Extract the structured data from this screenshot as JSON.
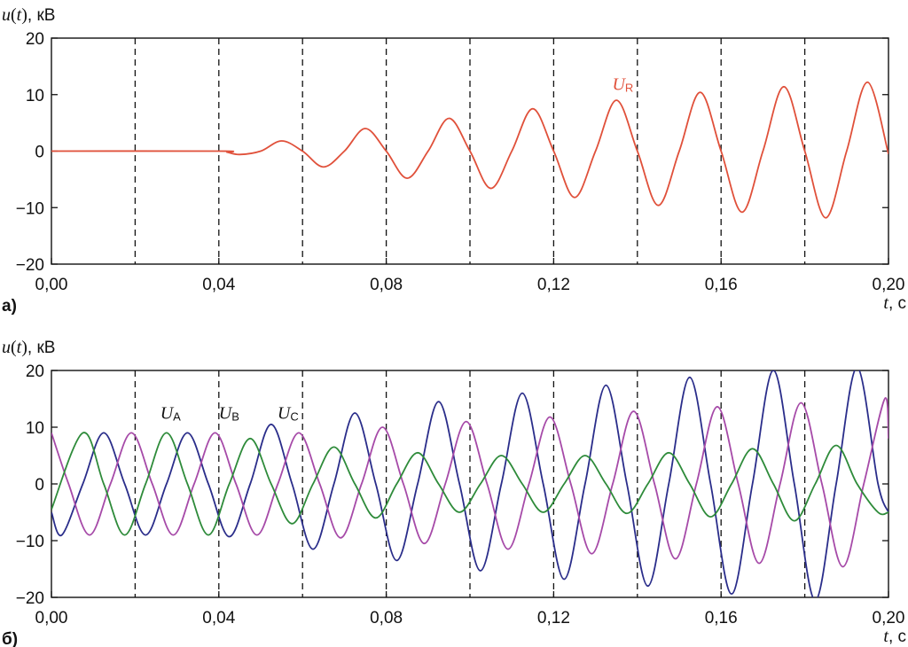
{
  "chart_data": [
    {
      "panel_label": "а)",
      "type": "line",
      "ylabel": "u(t), кВ",
      "ylabel_var": "u(t)",
      "ylabel_unit": ", кВ",
      "xlabel": "t, с",
      "xlabel_var": "t",
      "xlabel_unit": ", с",
      "xlim": [
        0,
        0.2
      ],
      "ylim": [
        -20,
        20
      ],
      "x_ticks": [
        "0,00",
        "0,04",
        "0,08",
        "0,12",
        "0,16",
        "0,20"
      ],
      "y_ticks": [
        "20",
        "10",
        "0",
        "−10",
        "−20"
      ],
      "y_tick_values": [
        20,
        10,
        0,
        -10,
        -20
      ],
      "x_tick_values": [
        0,
        0.04,
        0.08,
        0.12,
        0.16,
        0.2
      ],
      "vertical_dashed_lines": [
        0.02,
        0.04,
        0.06,
        0.08,
        0.1,
        0.12,
        0.14,
        0.16,
        0.18
      ],
      "grid": false,
      "series": [
        {
          "name": "UR",
          "label_main": "U",
          "label_sub": "R",
          "color": "#e0503a",
          "label_pos": [
            0.134,
            10.8
          ],
          "x": [
            0,
            0.04,
            0.042,
            0.045,
            0.05,
            0.055,
            0.06,
            0.065,
            0.07,
            0.075,
            0.08,
            0.085,
            0.09,
            0.095,
            0.1,
            0.105,
            0.11,
            0.115,
            0.12,
            0.125,
            0.13,
            0.135,
            0.14,
            0.145,
            0.15,
            0.155,
            0.16,
            0.165,
            0.17,
            0.175,
            0.18,
            0.185,
            0.19,
            0.195,
            0.2
          ],
          "y": [
            0,
            0,
            -0.2,
            -0.6,
            0,
            1.8,
            0,
            -2.8,
            0,
            4,
            0,
            -4.8,
            0,
            5.8,
            0,
            -6.6,
            0,
            7.5,
            0,
            -8.2,
            0,
            9,
            0,
            -9.6,
            0,
            10.4,
            0,
            -10.8,
            0,
            11.4,
            0,
            -11.8,
            0,
            12.2,
            -0.5
          ]
        }
      ]
    },
    {
      "panel_label": "б)",
      "type": "line",
      "ylabel": "u(t), кВ",
      "ylabel_var": "u(t)",
      "ylabel_unit": ", кВ",
      "xlabel": "t, с",
      "xlabel_var": "t",
      "xlabel_unit": ", с",
      "xlim": [
        0,
        0.2
      ],
      "ylim": [
        -20,
        20
      ],
      "x_ticks": [
        "0,00",
        "0,04",
        "0,08",
        "0,12",
        "0,16",
        "0,20"
      ],
      "y_ticks": [
        "20",
        "10",
        "0",
        "−10",
        "−20"
      ],
      "y_tick_values": [
        20,
        10,
        0,
        -10,
        -20
      ],
      "x_tick_values": [
        0,
        0.04,
        0.08,
        0.12,
        0.16,
        0.2
      ],
      "vertical_dashed_lines": [
        0.02,
        0.04,
        0.06,
        0.08,
        0.1,
        0.12,
        0.14,
        0.16,
        0.18
      ],
      "grid": false,
      "series": [
        {
          "name": "UA",
          "label_main": "U",
          "label_sub": "A",
          "color": "#2a2d8a",
          "label_pos": [
            0.026,
            11.5
          ],
          "x": [
            0,
            0.0025,
            0.0075,
            0.0125,
            0.0175,
            0.0225,
            0.0275,
            0.0325,
            0.0375,
            0.0425,
            0.0475,
            0.0525,
            0.0575,
            0.0625,
            0.0675,
            0.0725,
            0.0775,
            0.0825,
            0.0875,
            0.0925,
            0.0975,
            0.1025,
            0.1075,
            0.1125,
            0.1175,
            0.1225,
            0.1275,
            0.1325,
            0.1375,
            0.1425,
            0.1475,
            0.1525,
            0.1575,
            0.1625,
            0.1675,
            0.1725,
            0.1775,
            0.1825,
            0.1875,
            0.1925,
            0.1975,
            0.2
          ],
          "y": [
            -5,
            -9,
            0,
            9,
            0,
            -9,
            0,
            9,
            0,
            -9.3,
            0,
            10.5,
            0,
            -11.5,
            0,
            12.5,
            0,
            -13.5,
            0,
            14.5,
            0,
            -15.3,
            0,
            16,
            0,
            -16.8,
            0,
            17.4,
            0,
            -18,
            0,
            18.8,
            0,
            -19.4,
            0,
            20,
            0,
            -20.5,
            0,
            20.5,
            0,
            -5
          ]
        },
        {
          "name": "UB",
          "label_main": "U",
          "label_sub": "B",
          "color": "#a64aa8",
          "label_pos": [
            0.04,
            11.5
          ],
          "x": [
            0,
            0.0041,
            0.0091,
            0.0141,
            0.0191,
            0.0241,
            0.0291,
            0.0341,
            0.0391,
            0.0441,
            0.0491,
            0.0541,
            0.0591,
            0.0641,
            0.0691,
            0.0741,
            0.0791,
            0.0841,
            0.0891,
            0.0941,
            0.0991,
            0.1041,
            0.1091,
            0.1141,
            0.1191,
            0.1241,
            0.1291,
            0.1341,
            0.1391,
            0.1441,
            0.1491,
            0.1541,
            0.1591,
            0.1641,
            0.1691,
            0.1741,
            0.1791,
            0.1841,
            0.1891,
            0.1941,
            0.1991,
            0.2
          ],
          "y": [
            9,
            0,
            -9,
            0,
            9,
            0,
            -9,
            0,
            9,
            0,
            -9,
            0,
            9,
            0,
            -9.5,
            0,
            10,
            0,
            -10.5,
            0,
            11,
            0,
            -11.5,
            0,
            11.8,
            0,
            -12.3,
            0,
            12.8,
            0,
            -13.2,
            0,
            13.6,
            0,
            -14,
            0,
            14.3,
            0,
            -14.6,
            0,
            15,
            8
          ]
        },
        {
          "name": "UC",
          "label_main": "U",
          "label_sub": "C",
          "color": "#2e8b3a",
          "label_pos": [
            0.054,
            11.5
          ],
          "x": [
            0,
            0.0075,
            0.0125,
            0.0175,
            0.0225,
            0.0275,
            0.0325,
            0.0375,
            0.0425,
            0.0475,
            0.0525,
            0.0575,
            0.0625,
            0.0675,
            0.0725,
            0.0775,
            0.0825,
            0.0875,
            0.0925,
            0.0975,
            0.1025,
            0.1075,
            0.1125,
            0.1175,
            0.1225,
            0.1275,
            0.1325,
            0.1375,
            0.1425,
            0.1475,
            0.1525,
            0.1575,
            0.1625,
            0.1675,
            0.1725,
            0.1775,
            0.1825,
            0.1875,
            0.1925,
            0.1975,
            0.2
          ],
          "y": [
            -4.5,
            9,
            0,
            -9,
            0,
            9,
            0,
            -9,
            0,
            8,
            0,
            -7,
            0,
            6.5,
            0,
            -6,
            0,
            5.5,
            0,
            -5,
            0,
            5,
            0,
            -5,
            0,
            5,
            0,
            -5.2,
            0,
            5.5,
            0,
            -5.8,
            0,
            6.2,
            0,
            -6.5,
            0,
            6.8,
            0,
            -5,
            -5
          ]
        }
      ]
    }
  ]
}
